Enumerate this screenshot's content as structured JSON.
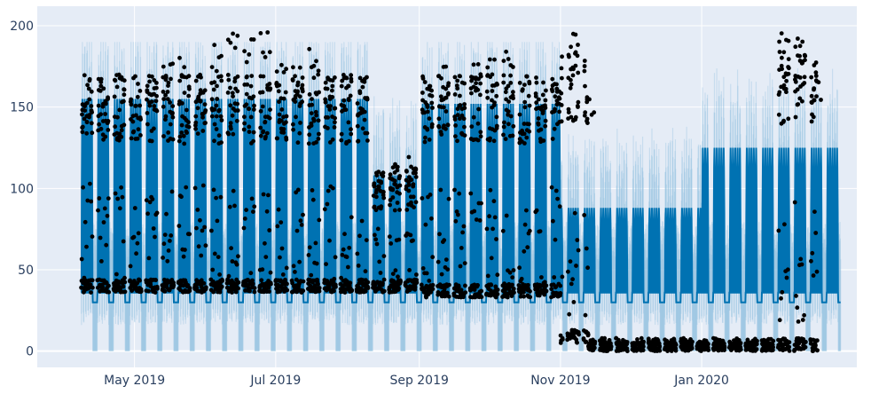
{
  "chart_data": {
    "type": "scatter",
    "title": "",
    "xlabel": "",
    "ylabel": "",
    "x_range": [
      "2019-03-20",
      "2020-03-08"
    ],
    "y_range": [
      -10,
      212
    ],
    "y_ticks": [
      0,
      50,
      100,
      150,
      200
    ],
    "x_ticks": [
      {
        "date": "2019-05-01",
        "label": "May 2019"
      },
      {
        "date": "2019-07-01",
        "label": "Jul 2019"
      },
      {
        "date": "2019-09-01",
        "label": "Sep 2019"
      },
      {
        "date": "2019-11-01",
        "label": "Nov 2019"
      },
      {
        "date": "2020-01-01",
        "label": "Jan 2020"
      }
    ],
    "grid": true,
    "legend": "none",
    "colors": {
      "plot_background": "#e5ecf6",
      "grid": "#ffffff",
      "observed_points": "#000000",
      "forecast_line": "#0072b2",
      "uncertainty_band": "#8fc0e0"
    },
    "series": [
      {
        "type": "observed",
        "mode": "markers"
      },
      {
        "type": "forecast",
        "mode": "lines"
      },
      {
        "type": "uncertainty",
        "mode": "band"
      }
    ],
    "observed": {
      "start": "2019-04-08",
      "end": "2020-02-20",
      "weekday_peak_profile": [
        {
          "from": "2019-04-08",
          "to": "2019-08-10",
          "peak": 170,
          "low": 36
        },
        {
          "from": "2019-08-11",
          "to": "2019-08-31",
          "peak": 115,
          "low": 36
        },
        {
          "from": "2019-09-01",
          "to": "2019-10-31",
          "peak": 170,
          "low": 33
        },
        {
          "from": "2019-11-01",
          "to": "2019-11-12",
          "peak": 185,
          "low": 5
        },
        {
          "from": "2019-11-13",
          "to": "2020-02-01",
          "peak": 5,
          "low": 0
        },
        {
          "from": "2020-02-01",
          "to": "2020-02-20",
          "peak": 185,
          "low": 0
        }
      ],
      "daily_points": [
        {
          "date": "2019-04-08",
          "peak": 156
        },
        {
          "date": "2019-04-15",
          "peak": 167
        },
        {
          "date": "2019-04-22",
          "peak": 150
        },
        {
          "date": "2019-05-06",
          "peak": 162
        },
        {
          "date": "2019-05-13",
          "peak": 182
        },
        {
          "date": "2019-05-20",
          "peak": 186
        },
        {
          "date": "2019-05-27",
          "peak": 160
        },
        {
          "date": "2019-06-03",
          "peak": 190
        },
        {
          "date": "2019-06-10",
          "peak": 198
        },
        {
          "date": "2019-06-17",
          "peak": 196
        },
        {
          "date": "2019-06-24",
          "peak": 200
        },
        {
          "date": "2019-07-01",
          "peak": 180
        },
        {
          "date": "2019-07-08",
          "peak": 178
        },
        {
          "date": "2019-07-15",
          "peak": 188
        },
        {
          "date": "2019-07-22",
          "peak": 175
        },
        {
          "date": "2019-07-29",
          "peak": 170
        },
        {
          "date": "2019-08-05",
          "peak": 160
        },
        {
          "date": "2019-08-12",
          "peak": 112
        },
        {
          "date": "2019-08-19",
          "peak": 102
        },
        {
          "date": "2019-08-26",
          "peak": 128
        },
        {
          "date": "2019-09-02",
          "peak": 170
        },
        {
          "date": "2019-09-09",
          "peak": 182
        },
        {
          "date": "2019-09-16",
          "peak": 162
        },
        {
          "date": "2019-09-23",
          "peak": 184
        },
        {
          "date": "2019-09-30",
          "peak": 182
        },
        {
          "date": "2019-10-07",
          "peak": 186
        },
        {
          "date": "2019-10-14",
          "peak": 178
        },
        {
          "date": "2019-10-21",
          "peak": 158
        },
        {
          "date": "2019-10-28",
          "peak": 160
        },
        {
          "date": "2019-11-04",
          "peak": 198
        },
        {
          "date": "2019-11-11",
          "peak": 160
        },
        {
          "date": "2020-02-03",
          "peak": 200
        },
        {
          "date": "2020-02-10",
          "peak": 198
        },
        {
          "date": "2020-02-17",
          "peak": 170
        }
      ]
    },
    "forecast": {
      "start": "2019-04-08",
      "end": "2020-03-01",
      "baseline": 36,
      "weekend_floor": 30,
      "weekday_peak_by_period": [
        {
          "from": "2019-04-08",
          "to": "2019-08-10",
          "peak": 155
        },
        {
          "from": "2019-08-11",
          "to": "2019-08-31",
          "peak": 108
        },
        {
          "from": "2019-09-01",
          "to": "2019-10-31",
          "peak": 152
        },
        {
          "from": "2019-11-01",
          "to": "2019-12-31",
          "peak": 88
        },
        {
          "from": "2020-01-01",
          "to": "2020-03-01",
          "peak": 125
        }
      ],
      "uncertainty_low": 0,
      "uncertainty_high": 190
    }
  }
}
